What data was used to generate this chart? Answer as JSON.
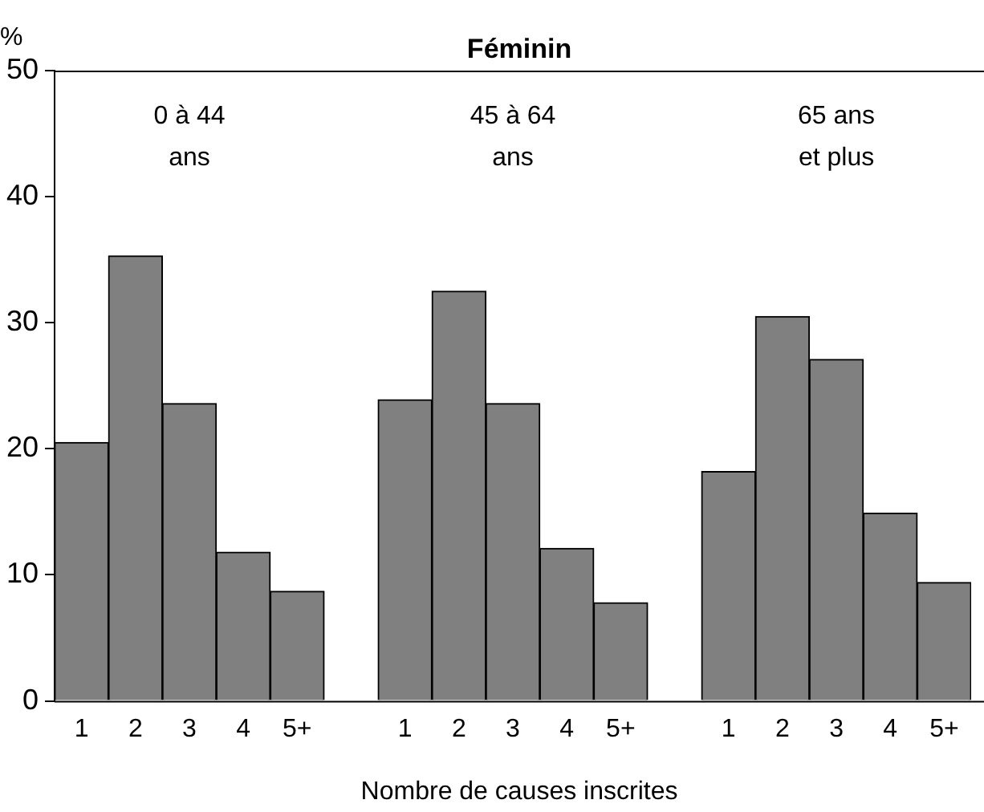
{
  "chart_data": {
    "type": "bar",
    "title": "Féminin",
    "xlabel": "Nombre de causes inscrites",
    "ylabel": "%",
    "categories": [
      "1",
      "2",
      "3",
      "4",
      "5+",
      null,
      "1",
      "2",
      "3",
      "4",
      "5+",
      null,
      "1",
      "2",
      "3",
      "4",
      "5+"
    ],
    "values": [
      20.5,
      35.3,
      23.6,
      11.8,
      8.7,
      null,
      23.9,
      32.5,
      23.6,
      12.1,
      7.8,
      null,
      18.2,
      30.5,
      27.1,
      14.9,
      9.4
    ],
    "color": "#808080",
    "ylim": [
      0,
      50
    ],
    "yticks": [
      0,
      10,
      20,
      30,
      40,
      50
    ],
    "grid": false,
    "legend": false,
    "annotations": [
      "0 à 44\nans",
      "45 à 64\nans",
      "65 ans\net plus"
    ]
  }
}
